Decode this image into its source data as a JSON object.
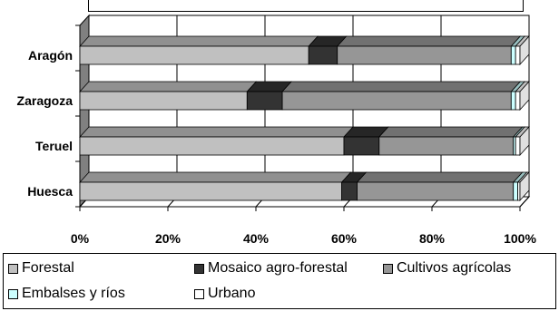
{
  "chart_data": {
    "type": "bar",
    "orientation": "horizontal",
    "stacked": "percent",
    "style": "3d",
    "categories": [
      "Aragón",
      "Zaragoza",
      "Teruel",
      "Huesca"
    ],
    "series": [
      {
        "name": "Forestal",
        "values": [
          52,
          38,
          60,
          59.5
        ],
        "color": "#c0c0c0"
      },
      {
        "name": "Mosaico agro-forestal",
        "values": [
          6.5,
          8,
          8,
          3.5
        ],
        "color": "#333333"
      },
      {
        "name": "Cultivos agrícolas",
        "values": [
          39.5,
          52,
          30.5,
          35.5
        ],
        "color": "#969696"
      },
      {
        "name": "Embalses y ríos",
        "values": [
          1,
          1,
          0.5,
          1
        ],
        "color": "#ccffff"
      },
      {
        "name": "Urbano",
        "values": [
          1,
          1,
          1,
          0.5
        ],
        "color": "#ffffff"
      }
    ],
    "xlim": [
      0,
      100
    ],
    "x_ticks": [
      "0%",
      "20%",
      "40%",
      "60%",
      "80%",
      "100%"
    ],
    "grid": true,
    "legend_position": "bottom"
  }
}
